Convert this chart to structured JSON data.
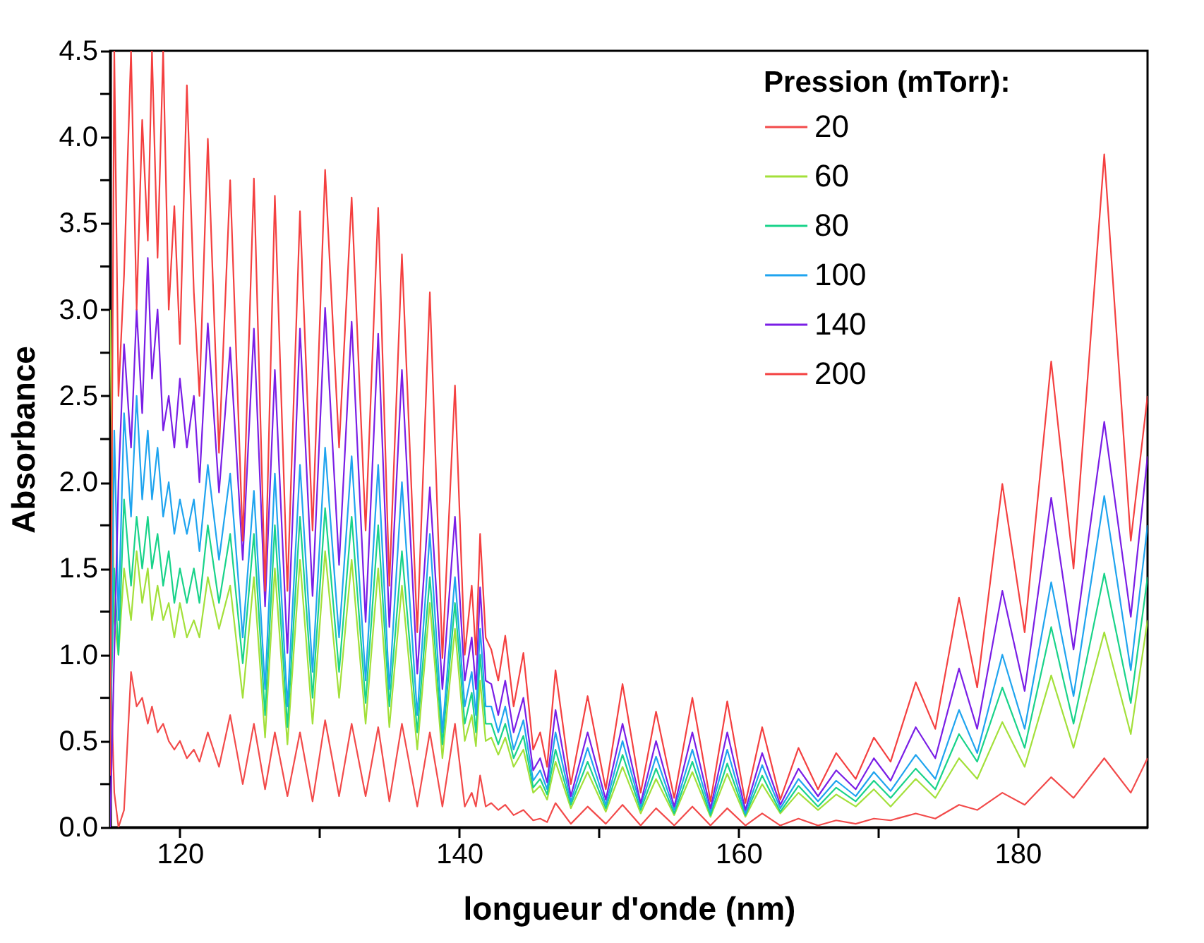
{
  "chart_data": {
    "type": "line",
    "xlabel": "longueur d'onde (nm)",
    "ylabel": "Absorbance",
    "legend_title": "Pression (mTorr):",
    "legend": "top right",
    "grid": false,
    "line_style": "solid",
    "xlim": [
      115,
      189.3
    ],
    "ylim": [
      0,
      4.5
    ],
    "xticks": [
      120,
      {
        "value": 130,
        "label": null
      },
      140,
      {
        "value": 150,
        "label": null
      },
      160,
      {
        "value": 170,
        "label": null
      },
      180
    ],
    "yticks": [
      {
        "value": 0,
        "label": "0.0"
      },
      {
        "value": 0.25,
        "label": null
      },
      {
        "value": 0.5,
        "label": "0.5"
      },
      {
        "value": 0.75,
        "label": null
      },
      {
        "value": 1,
        "label": "1.0"
      },
      {
        "value": 1.25,
        "label": null
      },
      {
        "value": 1.5,
        "label": "1.5"
      },
      {
        "value": 1.75,
        "label": null
      },
      {
        "value": 2,
        "label": "2.0"
      },
      {
        "value": 2.25,
        "label": null
      },
      {
        "value": 2.5,
        "label": "2.5"
      },
      {
        "value": 2.75,
        "label": null
      },
      {
        "value": 3,
        "label": "3.0"
      },
      {
        "value": 3.25,
        "label": null
      },
      {
        "value": 3.5,
        "label": "3.5"
      },
      {
        "value": 3.75,
        "label": null
      },
      {
        "value": 4,
        "label": "4.0"
      },
      {
        "value": 4.25,
        "label": null
      },
      {
        "value": 4.5,
        "label": "4.5"
      }
    ],
    "x": [
      115.0,
      115.3,
      115.6,
      116.0,
      116.5,
      116.9,
      117.3,
      117.7,
      118.0,
      118.4,
      118.8,
      119.2,
      119.6,
      120.0,
      120.5,
      121.0,
      121.4,
      122.0,
      122.8,
      123.6,
      124.5,
      125.3,
      126.1,
      126.8,
      127.7,
      128.6,
      129.5,
      130.4,
      131.4,
      132.3,
      133.3,
      134.2,
      135.0,
      135.9,
      137.0,
      137.9,
      138.8,
      139.7,
      140.4,
      140.9,
      141.2,
      141.5,
      141.9,
      142.3,
      142.8,
      143.3,
      143.9,
      144.6,
      145.3,
      145.8,
      146.3,
      146.9,
      148.0,
      149.2,
      150.5,
      151.7,
      153.0,
      154.1,
      155.4,
      156.7,
      158.0,
      159.2,
      160.5,
      161.7,
      163.0,
      164.3,
      165.7,
      167.0,
      168.4,
      169.7,
      170.9,
      172.7,
      174.1,
      175.8,
      177.1,
      178.9,
      180.5,
      182.4,
      184.0,
      186.2,
      188.1,
      189.3
    ],
    "series": [
      {
        "name": "20",
        "color": "#f24a4a",
        "values": [
          1.0,
          0.2,
          0.0,
          0.1,
          0.9,
          0.7,
          0.75,
          0.6,
          0.7,
          0.55,
          0.6,
          0.5,
          0.45,
          0.5,
          0.4,
          0.45,
          0.38,
          0.55,
          0.35,
          0.65,
          0.25,
          0.6,
          0.22,
          0.55,
          0.18,
          0.55,
          0.15,
          0.62,
          0.18,
          0.6,
          0.18,
          0.58,
          0.15,
          0.6,
          0.12,
          0.55,
          0.12,
          0.6,
          0.12,
          0.2,
          0.12,
          0.3,
          0.12,
          0.14,
          0.1,
          0.13,
          0.07,
          0.1,
          0.04,
          0.05,
          0.03,
          0.14,
          0.02,
          0.12,
          0.02,
          0.13,
          0.01,
          0.11,
          0.01,
          0.12,
          0.01,
          0.11,
          0.01,
          0.08,
          0.01,
          0.05,
          0.01,
          0.04,
          0.02,
          0.05,
          0.04,
          0.08,
          0.05,
          0.13,
          0.1,
          0.2,
          0.13,
          0.29,
          0.17,
          0.4,
          0.2,
          0.4
        ]
      },
      {
        "name": "60",
        "color": "#a3e03a",
        "values": [
          3.0,
          1.2,
          1.0,
          1.5,
          1.2,
          1.6,
          1.3,
          1.5,
          1.2,
          1.4,
          1.2,
          1.3,
          1.1,
          1.3,
          1.1,
          1.2,
          1.1,
          1.45,
          1.15,
          1.4,
          0.75,
          1.45,
          0.52,
          1.5,
          0.48,
          1.55,
          0.6,
          1.6,
          0.75,
          1.55,
          0.6,
          1.5,
          0.58,
          1.4,
          0.45,
          1.3,
          0.4,
          1.15,
          0.5,
          0.65,
          0.47,
          0.85,
          0.5,
          0.52,
          0.42,
          0.52,
          0.35,
          0.45,
          0.2,
          0.24,
          0.16,
          0.38,
          0.11,
          0.32,
          0.09,
          0.35,
          0.08,
          0.28,
          0.07,
          0.32,
          0.06,
          0.31,
          0.06,
          0.25,
          0.08,
          0.2,
          0.1,
          0.19,
          0.12,
          0.22,
          0.12,
          0.28,
          0.17,
          0.4,
          0.28,
          0.61,
          0.35,
          0.88,
          0.46,
          1.13,
          0.54,
          1.2
        ]
      },
      {
        "name": "80",
        "color": "#19d38a",
        "values": [
          0.5,
          1.5,
          1.0,
          1.9,
          1.4,
          1.8,
          1.5,
          1.8,
          1.5,
          1.7,
          1.4,
          1.6,
          1.3,
          1.5,
          1.3,
          1.5,
          1.3,
          1.75,
          1.3,
          1.7,
          0.95,
          1.7,
          0.65,
          1.75,
          0.58,
          1.8,
          0.75,
          1.85,
          0.9,
          1.8,
          0.72,
          1.75,
          0.7,
          1.6,
          0.55,
          1.45,
          0.48,
          1.3,
          0.6,
          0.78,
          0.55,
          1.0,
          0.6,
          0.6,
          0.48,
          0.6,
          0.4,
          0.53,
          0.23,
          0.28,
          0.19,
          0.45,
          0.13,
          0.38,
          0.11,
          0.42,
          0.1,
          0.34,
          0.08,
          0.38,
          0.07,
          0.37,
          0.07,
          0.3,
          0.09,
          0.24,
          0.12,
          0.23,
          0.15,
          0.27,
          0.17,
          0.34,
          0.22,
          0.54,
          0.38,
          0.81,
          0.46,
          1.16,
          0.6,
          1.47,
          0.72,
          1.45
        ]
      },
      {
        "name": "100",
        "color": "#1fa4ef",
        "values": [
          0.3,
          2.3,
          1.2,
          2.4,
          1.8,
          2.5,
          1.9,
          2.3,
          1.9,
          2.2,
          1.8,
          2.0,
          1.7,
          1.9,
          1.7,
          1.9,
          1.6,
          2.1,
          1.55,
          2.05,
          1.1,
          1.95,
          0.8,
          2.05,
          0.7,
          2.1,
          0.9,
          2.2,
          1.1,
          2.15,
          0.85,
          2.1,
          0.8,
          2.0,
          0.65,
          1.7,
          0.55,
          1.45,
          0.7,
          0.9,
          0.65,
          1.15,
          0.7,
          0.7,
          0.55,
          0.7,
          0.45,
          0.62,
          0.27,
          0.33,
          0.22,
          0.55,
          0.15,
          0.46,
          0.13,
          0.5,
          0.12,
          0.41,
          0.1,
          0.45,
          0.09,
          0.45,
          0.08,
          0.36,
          0.11,
          0.28,
          0.15,
          0.27,
          0.18,
          0.32,
          0.21,
          0.42,
          0.28,
          0.68,
          0.43,
          1.0,
          0.57,
          1.42,
          0.76,
          1.92,
          0.91,
          1.75
        ]
      },
      {
        "name": "140",
        "color": "#7a1ee6",
        "values": [
          0.0,
          1.0,
          2.0,
          2.8,
          2.2,
          3.0,
          2.4,
          3.3,
          2.6,
          3.0,
          2.3,
          2.5,
          2.2,
          2.6,
          2.2,
          2.5,
          2.0,
          2.92,
          1.94,
          2.78,
          1.55,
          2.89,
          1.28,
          2.65,
          1.01,
          2.89,
          1.34,
          3.01,
          1.52,
          2.93,
          1.19,
          2.86,
          1.16,
          2.65,
          0.89,
          1.97,
          0.8,
          1.8,
          0.85,
          1.1,
          0.8,
          1.39,
          0.85,
          0.83,
          0.65,
          0.85,
          0.55,
          0.75,
          0.33,
          0.4,
          0.26,
          0.68,
          0.18,
          0.55,
          0.16,
          0.6,
          0.14,
          0.5,
          0.12,
          0.55,
          0.11,
          0.55,
          0.1,
          0.43,
          0.13,
          0.34,
          0.18,
          0.33,
          0.22,
          0.4,
          0.27,
          0.58,
          0.4,
          0.92,
          0.57,
          1.37,
          0.79,
          1.91,
          1.03,
          2.35,
          1.22,
          2.15
        ]
      },
      {
        "name": "200",
        "color": "#f44040",
        "values": [
          0.3,
          4.5,
          2.5,
          3.2,
          4.5,
          3.0,
          4.1,
          3.4,
          4.5,
          3.3,
          4.5,
          3.0,
          3.6,
          2.8,
          4.3,
          3.1,
          2.5,
          3.99,
          2.17,
          3.75,
          1.66,
          3.76,
          1.37,
          3.66,
          1.37,
          3.57,
          1.72,
          3.81,
          2.2,
          3.65,
          1.72,
          3.59,
          1.4,
          3.32,
          1.13,
          3.1,
          0.98,
          2.56,
          1.0,
          1.4,
          1.0,
          1.7,
          1.1,
          1.03,
          0.85,
          1.11,
          0.7,
          1.01,
          0.45,
          0.55,
          0.35,
          0.91,
          0.25,
          0.76,
          0.22,
          0.83,
          0.2,
          0.67,
          0.17,
          0.75,
          0.15,
          0.73,
          0.14,
          0.58,
          0.16,
          0.46,
          0.22,
          0.43,
          0.28,
          0.52,
          0.38,
          0.84,
          0.57,
          1.33,
          0.81,
          1.99,
          1.13,
          2.7,
          1.5,
          3.9,
          1.66,
          2.5
        ]
      }
    ]
  }
}
